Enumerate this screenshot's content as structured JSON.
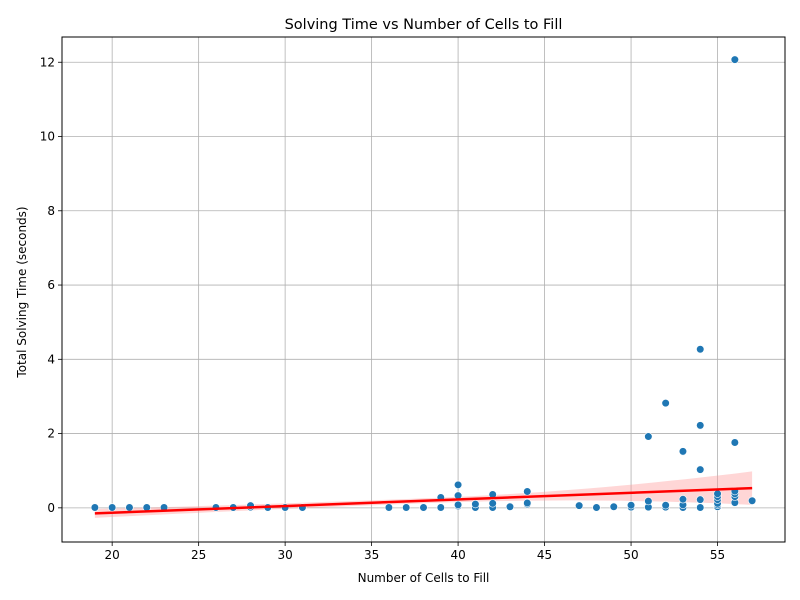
{
  "chart_data": {
    "type": "scatter",
    "title": "Solving Time vs Number of Cells to Fill",
    "xlabel": "Number of Cells to Fill",
    "ylabel": "Total Solving Time (seconds)",
    "xlim": [
      17.1,
      58.9
    ],
    "ylim": [
      -0.92,
      12.68
    ],
    "xticks": [
      20,
      25,
      30,
      35,
      40,
      45,
      50,
      55
    ],
    "yticks": [
      0,
      2,
      4,
      6,
      8,
      10,
      12
    ],
    "grid": true,
    "colors": {
      "points": "#1f77b4",
      "fit_line": "#ff0000",
      "confidence_band": "#ff9999"
    },
    "points": [
      [
        19,
        0.01
      ],
      [
        20,
        0.01
      ],
      [
        21,
        0.01
      ],
      [
        22,
        0.01
      ],
      [
        23,
        0.01
      ],
      [
        26,
        0.01
      ],
      [
        27,
        0.01
      ],
      [
        28,
        0.02
      ],
      [
        28,
        0.06
      ],
      [
        29,
        0.01
      ],
      [
        30,
        0.01
      ],
      [
        31,
        0.01
      ],
      [
        36,
        0.01
      ],
      [
        37,
        0.01
      ],
      [
        38,
        0.01
      ],
      [
        39,
        0.01
      ],
      [
        39,
        0.28
      ],
      [
        40,
        0.05
      ],
      [
        40,
        0.08
      ],
      [
        40,
        0.33
      ],
      [
        40,
        0.62
      ],
      [
        41,
        0.01
      ],
      [
        41,
        0.1
      ],
      [
        42,
        0.01
      ],
      [
        42,
        0.12
      ],
      [
        42,
        0.36
      ],
      [
        43,
        0.03
      ],
      [
        44,
        0.1
      ],
      [
        44,
        0.13
      ],
      [
        44,
        0.44
      ],
      [
        47,
        0.06
      ],
      [
        48,
        0.01
      ],
      [
        49,
        0.03
      ],
      [
        50,
        0.02
      ],
      [
        50,
        0.07
      ],
      [
        51,
        0.02
      ],
      [
        51,
        0.18
      ],
      [
        51,
        1.92
      ],
      [
        52,
        0.02
      ],
      [
        52,
        0.07
      ],
      [
        52,
        2.82
      ],
      [
        53,
        0.01
      ],
      [
        53,
        0.08
      ],
      [
        53,
        0.23
      ],
      [
        53,
        1.52
      ],
      [
        54,
        0.01
      ],
      [
        54,
        0.22
      ],
      [
        54,
        1.03
      ],
      [
        54,
        2.22
      ],
      [
        54,
        4.27
      ],
      [
        55,
        0.03
      ],
      [
        55,
        0.08
      ],
      [
        55,
        0.12
      ],
      [
        55,
        0.22
      ],
      [
        55,
        0.3
      ],
      [
        55,
        0.38
      ],
      [
        56,
        0.14
      ],
      [
        56,
        0.3
      ],
      [
        56,
        0.38
      ],
      [
        56,
        0.45
      ],
      [
        56,
        1.76
      ],
      [
        56,
        12.07
      ],
      [
        57,
        0.19
      ]
    ],
    "regression": {
      "x_range": [
        19,
        57
      ],
      "y_fit": [
        -0.15,
        0.53
      ],
      "ci_lower": [
        -0.27,
        0.08
      ],
      "ci_upper": [
        -0.03,
        0.98
      ]
    }
  }
}
